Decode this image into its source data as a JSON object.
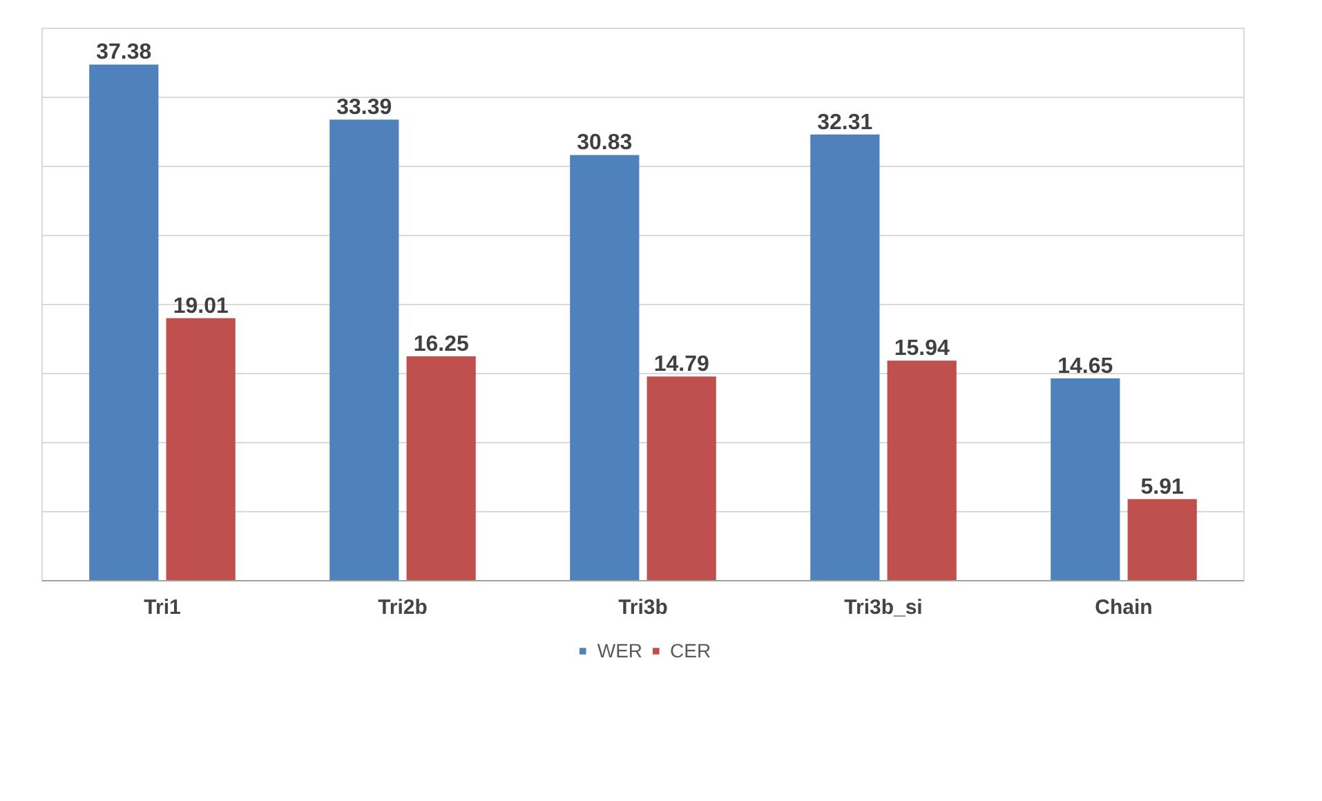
{
  "chart_data": {
    "type": "bar",
    "categories": [
      "Tri1",
      "Tri2b",
      "Tri3b",
      "Tri3b_si",
      "Chain"
    ],
    "series": [
      {
        "name": "WER",
        "color": "#4f81bd",
        "values": [
          37.38,
          33.39,
          30.83,
          32.31,
          14.65
        ]
      },
      {
        "name": "CER",
        "color": "#c0504d",
        "values": [
          19.01,
          16.25,
          14.79,
          15.94,
          5.91
        ]
      }
    ],
    "ylim": [
      0,
      40
    ],
    "yticks": [
      {
        "value": 0,
        "label": null
      },
      {
        "value": 5,
        "label": null
      },
      {
        "value": 10,
        "label": null
      },
      {
        "value": 15,
        "label": null
      },
      {
        "value": 20,
        "label": null
      },
      {
        "value": 25,
        "label": null
      },
      {
        "value": 30,
        "label": null
      },
      {
        "value": 35,
        "label": null
      },
      {
        "value": 40,
        "label": null
      }
    ],
    "grid": "y",
    "legend": "bottom",
    "data_labels": true,
    "tick_labels": "x"
  }
}
